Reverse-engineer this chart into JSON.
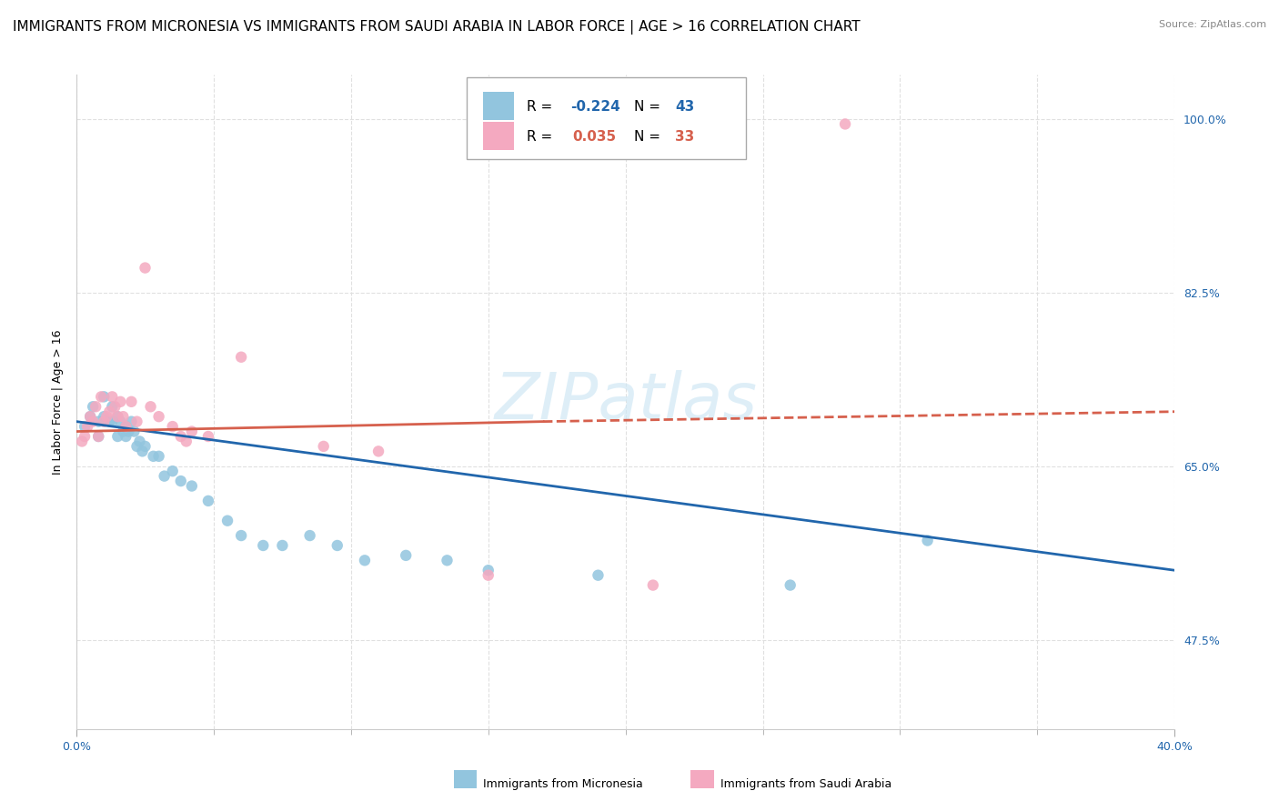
{
  "title": "IMMIGRANTS FROM MICRONESIA VS IMMIGRANTS FROM SAUDI ARABIA IN LABOR FORCE | AGE > 16 CORRELATION CHART",
  "source": "Source: ZipAtlas.com",
  "ylabel": "In Labor Force | Age > 16",
  "xlim": [
    0.0,
    0.4
  ],
  "ylim": [
    0.385,
    1.045
  ],
  "ytick_values": [
    0.475,
    0.65,
    0.825,
    1.0
  ],
  "watermark": "ZIPatlas",
  "color_blue": "#92c5de",
  "color_pink": "#f4a9c0",
  "color_blue_dark": "#2166ac",
  "color_pink_dark": "#d6604d",
  "micronesia_x": [
    0.003,
    0.005,
    0.006,
    0.008,
    0.008,
    0.01,
    0.01,
    0.012,
    0.013,
    0.013,
    0.015,
    0.015,
    0.016,
    0.017,
    0.018,
    0.018,
    0.019,
    0.02,
    0.021,
    0.022,
    0.023,
    0.024,
    0.025,
    0.028,
    0.03,
    0.032,
    0.035,
    0.038,
    0.042,
    0.048,
    0.055,
    0.06,
    0.068,
    0.075,
    0.085,
    0.095,
    0.105,
    0.12,
    0.135,
    0.15,
    0.19,
    0.26,
    0.31
  ],
  "micronesia_y": [
    0.69,
    0.7,
    0.71,
    0.695,
    0.68,
    0.72,
    0.7,
    0.695,
    0.71,
    0.695,
    0.7,
    0.68,
    0.695,
    0.685,
    0.69,
    0.68,
    0.685,
    0.695,
    0.685,
    0.67,
    0.675,
    0.665,
    0.67,
    0.66,
    0.66,
    0.64,
    0.645,
    0.635,
    0.63,
    0.615,
    0.595,
    0.58,
    0.57,
    0.57,
    0.58,
    0.57,
    0.555,
    0.56,
    0.555,
    0.545,
    0.54,
    0.53,
    0.575
  ],
  "saudi_x": [
    0.002,
    0.003,
    0.004,
    0.005,
    0.006,
    0.007,
    0.008,
    0.009,
    0.01,
    0.011,
    0.012,
    0.013,
    0.014,
    0.015,
    0.016,
    0.017,
    0.018,
    0.02,
    0.022,
    0.025,
    0.027,
    0.03,
    0.035,
    0.038,
    0.04,
    0.042,
    0.048,
    0.06,
    0.09,
    0.11,
    0.15,
    0.21,
    0.28
  ],
  "saudi_y": [
    0.675,
    0.68,
    0.69,
    0.7,
    0.695,
    0.71,
    0.68,
    0.72,
    0.695,
    0.7,
    0.705,
    0.72,
    0.71,
    0.7,
    0.715,
    0.7,
    0.69,
    0.715,
    0.695,
    0.85,
    0.71,
    0.7,
    0.69,
    0.68,
    0.675,
    0.685,
    0.68,
    0.76,
    0.67,
    0.665,
    0.54,
    0.53,
    0.995
  ],
  "micronesia_trend": [
    0.0,
    0.4,
    0.695,
    0.545
  ],
  "saudi_trend_solid": [
    0.0,
    0.17,
    0.685,
    0.695
  ],
  "saudi_trend_dashed": [
    0.17,
    0.4,
    0.695,
    0.705
  ],
  "grid_color": "#e0e0e0",
  "background_color": "#ffffff"
}
